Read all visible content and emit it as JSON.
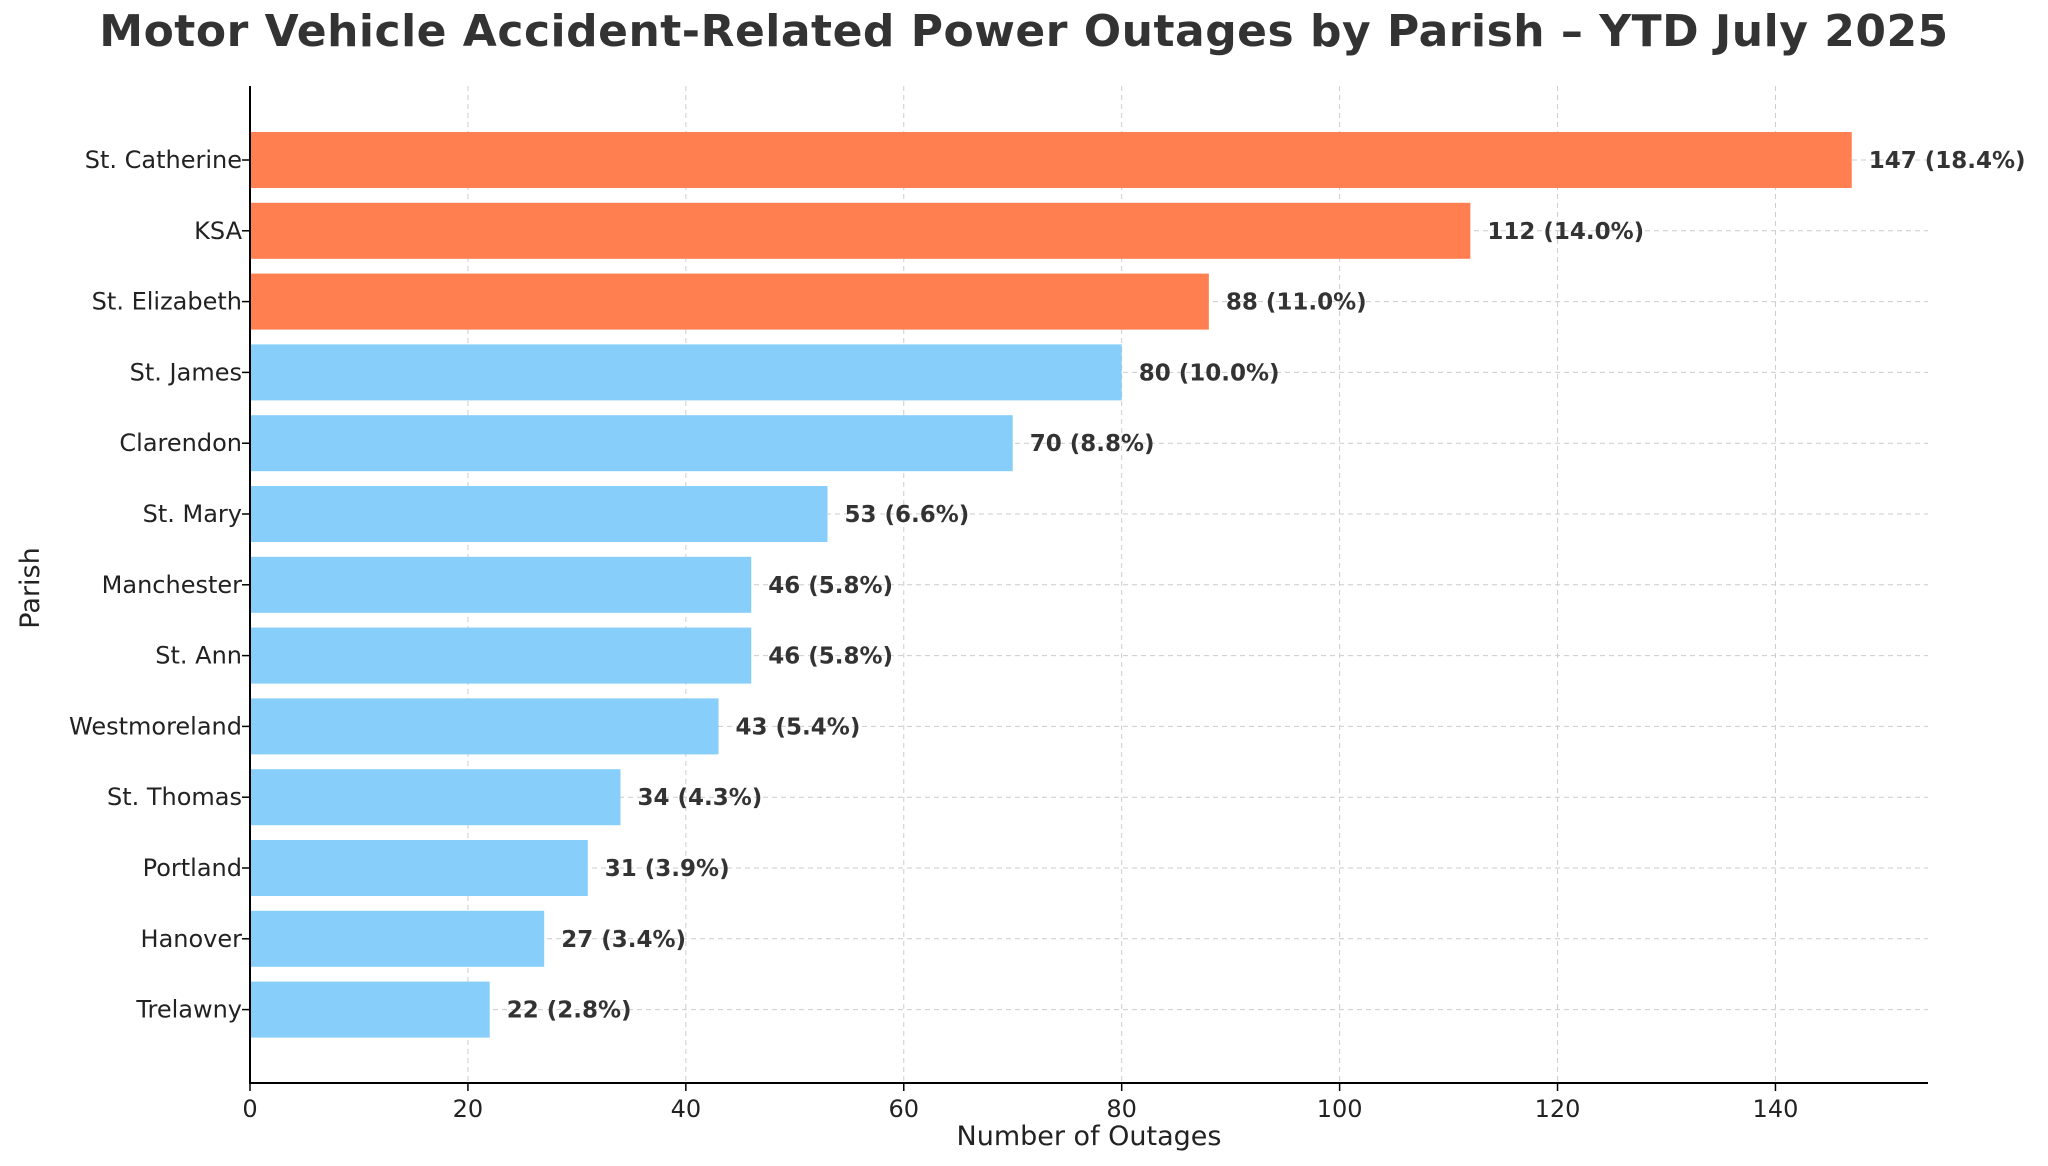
{
  "chart_data": {
    "type": "bar",
    "orientation": "horizontal",
    "title": "Motor Vehicle Accident-Related Power Outages by Parish – YTD July 2025",
    "xlabel": "Number of Outages",
    "ylabel": "Parish",
    "xlim": [
      0,
      154
    ],
    "xticks": [
      0,
      20,
      40,
      60,
      80,
      100,
      120,
      140
    ],
    "grid": true,
    "categories": [
      "St. Catherine",
      "KSA",
      "St. Elizabeth",
      "St. James",
      "Clarendon",
      "St. Mary",
      "Manchester",
      "St. Ann",
      "Westmoreland",
      "St. Thomas",
      "Portland",
      "Hanover",
      "Trelawny"
    ],
    "values": [
      147,
      112,
      88,
      80,
      70,
      53,
      46,
      46,
      43,
      34,
      31,
      27,
      22
    ],
    "data_labels": [
      "147 (18.4%)",
      "112 (14.0%)",
      "88 (11.0%)",
      "80 (10.0%)",
      "70 (8.8%)",
      "53 (6.6%)",
      "46 (5.8%)",
      "46 (5.8%)",
      "43 (5.4%)",
      "34 (4.3%)",
      "31 (3.9%)",
      "27 (3.4%)",
      "22 (2.8%)"
    ],
    "highlight_count": 3,
    "colors": {
      "highlight": "#ff7f50",
      "default": "#87cefa",
      "grid": "#cccccc",
      "text": "#333333"
    }
  }
}
